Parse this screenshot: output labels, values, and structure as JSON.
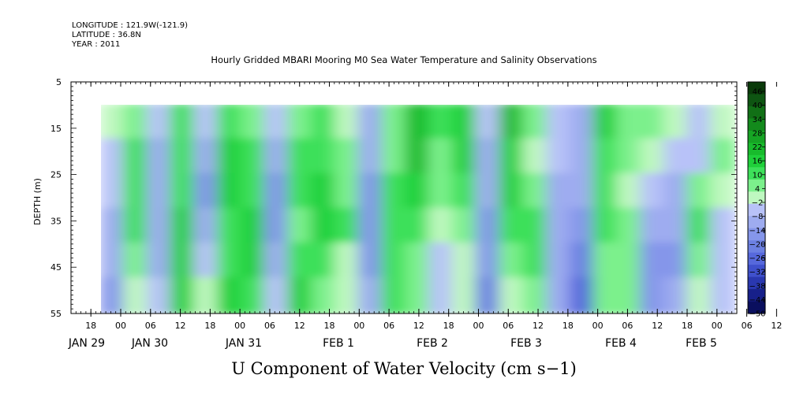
{
  "header": {
    "longitude": "LONGITUDE : 121.9W(-121.9)",
    "latitude": "LATITUDE : 36.8N",
    "year": "YEAR : 2011"
  },
  "chart_data": {
    "type": "heatmap",
    "title": "Hourly Gridded MBARI Mooring M0 Sea Water Temperature and Salinity Observations",
    "xlabel": "U Component of Water Velocity (cm s−1)",
    "ylabel": "DEPTH (m)",
    "ylim": [
      55,
      5
    ],
    "yticks": [
      "5",
      "15",
      "25",
      "35",
      "45",
      "55"
    ],
    "data_depth_range_m": [
      10,
      55
    ],
    "x_range_hours": [
      -10,
      124
    ],
    "x_start": "JAN 29 18:00",
    "x_end": "FEB 5 ~16:00",
    "data_start": "JAN 29 ~23:00",
    "hour_tick_labels": [
      "18",
      "00",
      "06",
      "12",
      "18",
      "00",
      "06",
      "12",
      "18",
      "00",
      "06",
      "12",
      "18",
      "00",
      "06",
      "12",
      "18",
      "00",
      "06",
      "12",
      "18",
      "00",
      "06",
      "12",
      "18",
      "00",
      "06",
      "12",
      "18",
      "00",
      "06",
      "12"
    ],
    "day_labels": [
      "JAN 29",
      "JAN 30",
      "JAN 31",
      "FEB  1",
      "FEB  2",
      "FEB  3",
      "FEB  4",
      "FEB  5"
    ],
    "colorbar": {
      "levels": [
        "46",
        "40",
        "34",
        "28",
        "22",
        "16",
        "10",
        "4",
        "−2",
        "−8",
        "−14",
        "−20",
        "−26",
        "−32",
        "−38",
        "−44",
        "−50"
      ],
      "range": [
        -50,
        50
      ],
      "colors_top_to_bottom": [
        "#0a3a0a",
        "#0e5512",
        "#117016",
        "#138a1c",
        "#16a424",
        "#18bb2c",
        "#1fd03a",
        "#3de05a",
        "#7cf08c",
        "#bff8c0",
        "#b8c2f8",
        "#9eacf0",
        "#8596ea",
        "#6c80e2",
        "#5668dc",
        "#3f50cc",
        "#2a38b0",
        "#17208a",
        "#0a0f5e"
      ]
    },
    "grid": false,
    "legend": "colorbar right",
    "columns": [
      {
        "day": "JAN 30 00",
        "values_top_to_bottom": [
          -2,
          -4,
          -6,
          -8,
          -10,
          -14
        ]
      },
      {
        "day": "JAN 30 06",
        "values_top_to_bottom": [
          6,
          8,
          10,
          8,
          4,
          2
        ]
      },
      {
        "day": "JAN 30 12",
        "values_top_to_bottom": [
          -4,
          -8,
          -12,
          -10,
          -8,
          -6
        ]
      },
      {
        "day": "JAN 30 18",
        "values_top_to_bottom": [
          8,
          10,
          12,
          14,
          16,
          18
        ]
      },
      {
        "day": "JAN 31 00",
        "values_top_to_bottom": [
          -6,
          -10,
          -14,
          -8,
          -4,
          -2
        ]
      },
      {
        "day": "JAN 31 06",
        "values_top_to_bottom": [
          10,
          14,
          16,
          12,
          8,
          14
        ]
      },
      {
        "day": "JAN 31 12",
        "values_top_to_bottom": [
          4,
          8,
          12,
          18,
          16,
          10
        ]
      },
      {
        "day": "JAN 31 18",
        "values_top_to_bottom": [
          -4,
          -10,
          -16,
          -18,
          -12,
          -6
        ]
      },
      {
        "day": "FEB 1 00",
        "values_top_to_bottom": [
          6,
          10,
          8,
          4,
          12,
          16
        ]
      },
      {
        "day": "FEB 1 06",
        "values_top_to_bottom": [
          10,
          12,
          14,
          18,
          10,
          4
        ]
      },
      {
        "day": "FEB 1 12",
        "values_top_to_bottom": [
          2,
          4,
          6,
          8,
          2,
          -2
        ]
      },
      {
        "day": "FEB 1 18",
        "values_top_to_bottom": [
          -8,
          -10,
          -14,
          -18,
          -16,
          -10
        ]
      },
      {
        "day": "FEB 2 00",
        "values_top_to_bottom": [
          4,
          6,
          8,
          10,
          12,
          8
        ]
      },
      {
        "day": "FEB 2 06",
        "values_top_to_bottom": [
          22,
          20,
          16,
          10,
          6,
          4
        ]
      },
      {
        "day": "FEB 2 12",
        "values_top_to_bottom": [
          8,
          6,
          4,
          -2,
          -6,
          -4
        ]
      },
      {
        "day": "FEB 2 18",
        "values_top_to_bottom": [
          18,
          16,
          12,
          6,
          2,
          -2
        ]
      },
      {
        "day": "FEB 3 00",
        "values_top_to_bottom": [
          -6,
          -8,
          -10,
          -14,
          -18,
          -20
        ]
      },
      {
        "day": "FEB 3 06",
        "values_top_to_bottom": [
          20,
          18,
          14,
          10,
          6,
          2
        ]
      },
      {
        "day": "FEB 3 12",
        "values_top_to_bottom": [
          4,
          2,
          6,
          12,
          8,
          4
        ]
      },
      {
        "day": "FEB 3 18",
        "values_top_to_bottom": [
          -4,
          -6,
          -8,
          -10,
          -12,
          -8
        ]
      },
      {
        "day": "FEB 4 00",
        "values_top_to_bottom": [
          -8,
          -10,
          -12,
          -16,
          -20,
          -24
        ]
      },
      {
        "day": "FEB 4 06",
        "values_top_to_bottom": [
          14,
          12,
          10,
          8,
          6,
          4
        ]
      },
      {
        "day": "FEB 4 12",
        "values_top_to_bottom": [
          6,
          4,
          2,
          4,
          6,
          4
        ]
      },
      {
        "day": "FEB 4 18",
        "values_top_to_bottom": [
          4,
          -2,
          -6,
          -10,
          -14,
          -16
        ]
      },
      {
        "day": "FEB 5 00",
        "values_top_to_bottom": [
          -2,
          -6,
          -10,
          -12,
          -14,
          -10
        ]
      },
      {
        "day": "FEB 5 06",
        "values_top_to_bottom": [
          -6,
          -4,
          4,
          8,
          6,
          2
        ]
      },
      {
        "day": "FEB 5 12",
        "values_top_to_bottom": [
          2,
          4,
          2,
          -4,
          -6,
          -4
        ]
      }
    ]
  }
}
